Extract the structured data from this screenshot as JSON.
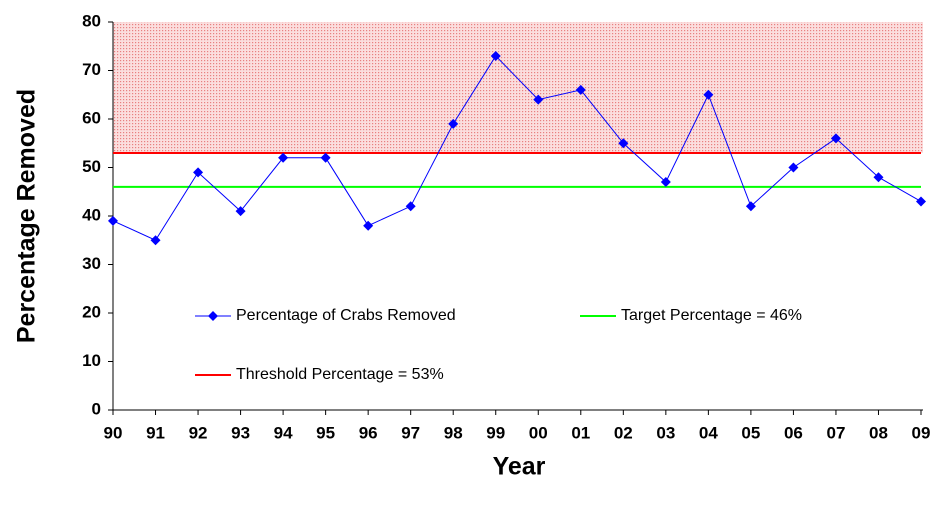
{
  "chart_data": {
    "type": "line",
    "xlabel": "Year",
    "ylabel": "Percentage Removed",
    "categories": [
      "90",
      "91",
      "92",
      "93",
      "94",
      "95",
      "96",
      "97",
      "98",
      "99",
      "00",
      "01",
      "02",
      "03",
      "04",
      "05",
      "06",
      "07",
      "08",
      "09"
    ],
    "series": [
      {
        "name": "Percentage of Crabs Removed",
        "color": "#0000ff",
        "marker": "diamond",
        "values": [
          39,
          35,
          49,
          41,
          52,
          52,
          38,
          42,
          59,
          73,
          64,
          66,
          55,
          47,
          65,
          42,
          50,
          56,
          48,
          43
        ]
      },
      {
        "name": "Target Percentage = 46%",
        "color": "#00ff00",
        "values": [
          46,
          46,
          46,
          46,
          46,
          46,
          46,
          46,
          46,
          46,
          46,
          46,
          46,
          46,
          46,
          46,
          46,
          46,
          46,
          46
        ]
      },
      {
        "name": "Threshold Percentage = 53%",
        "color": "#ff0000",
        "shade_above": true,
        "values": [
          53,
          53,
          53,
          53,
          53,
          53,
          53,
          53,
          53,
          53,
          53,
          53,
          53,
          53,
          53,
          53,
          53,
          53,
          53,
          53
        ]
      }
    ],
    "ylim": [
      0,
      80
    ],
    "yticks": [
      0,
      10,
      20,
      30,
      40,
      50,
      60,
      70,
      80
    ],
    "grid": false
  }
}
